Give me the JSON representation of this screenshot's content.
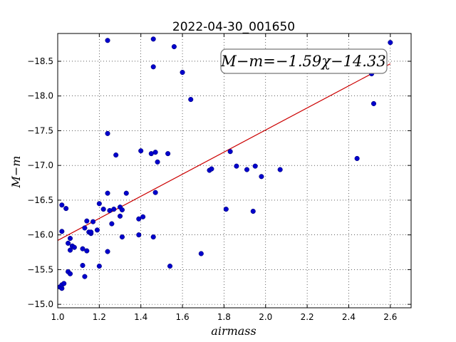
{
  "chart_data": {
    "type": "scatter",
    "title": "2022-04-30_001650",
    "xlabel": "airmass",
    "ylabel": "M−m",
    "xlim": [
      1.0,
      2.7
    ],
    "ylim": [
      -18.9,
      -14.95
    ],
    "y_inverted": true,
    "grid": true,
    "x_ticks": [
      1.0,
      1.2,
      1.4,
      1.6,
      1.8,
      2.0,
      2.2,
      2.4,
      2.6
    ],
    "y_ticks": [
      -15.0,
      -15.5,
      -16.0,
      -16.5,
      -17.0,
      -17.5,
      -18.0,
      -18.5
    ],
    "annotation": "M−m=−1.59χ−14.33",
    "annotation_placement": "top-right",
    "colors": {
      "points": "#0000cc",
      "fit": "#cc0000"
    },
    "fit": {
      "slope": -1.59,
      "intercept": -14.33,
      "x_range": [
        1.0,
        2.6
      ]
    },
    "points": [
      {
        "x": 1.01,
        "y": -15.25
      },
      {
        "x": 1.02,
        "y": -15.23
      },
      {
        "x": 1.02,
        "y": -15.28
      },
      {
        "x": 1.03,
        "y": -15.3
      },
      {
        "x": 1.05,
        "y": -15.47
      },
      {
        "x": 1.06,
        "y": -15.44
      },
      {
        "x": 1.02,
        "y": -16.05
      },
      {
        "x": 1.02,
        "y": -16.43
      },
      {
        "x": 1.04,
        "y": -16.38
      },
      {
        "x": 1.05,
        "y": -15.88
      },
      {
        "x": 1.06,
        "y": -15.78
      },
      {
        "x": 1.06,
        "y": -15.95
      },
      {
        "x": 1.07,
        "y": -15.84
      },
      {
        "x": 1.08,
        "y": -15.82
      },
      {
        "x": 1.12,
        "y": -15.8
      },
      {
        "x": 1.12,
        "y": -15.56
      },
      {
        "x": 1.13,
        "y": -15.4
      },
      {
        "x": 1.13,
        "y": -16.1
      },
      {
        "x": 1.14,
        "y": -15.77
      },
      {
        "x": 1.14,
        "y": -16.2
      },
      {
        "x": 1.15,
        "y": -16.04
      },
      {
        "x": 1.16,
        "y": -16.02
      },
      {
        "x": 1.16,
        "y": -16.04
      },
      {
        "x": 1.17,
        "y": -16.19
      },
      {
        "x": 1.19,
        "y": -16.07
      },
      {
        "x": 1.2,
        "y": -15.55
      },
      {
        "x": 1.2,
        "y": -16.45
      },
      {
        "x": 1.22,
        "y": -16.37
      },
      {
        "x": 1.24,
        "y": -15.76
      },
      {
        "x": 1.24,
        "y": -16.6
      },
      {
        "x": 1.25,
        "y": -16.35
      },
      {
        "x": 1.26,
        "y": -16.16
      },
      {
        "x": 1.27,
        "y": -16.37
      },
      {
        "x": 1.28,
        "y": -17.15
      },
      {
        "x": 1.3,
        "y": -16.27
      },
      {
        "x": 1.3,
        "y": -16.4
      },
      {
        "x": 1.31,
        "y": -16.36
      },
      {
        "x": 1.31,
        "y": -15.97
      },
      {
        "x": 1.33,
        "y": -16.6
      },
      {
        "x": 1.39,
        "y": -16.0
      },
      {
        "x": 1.39,
        "y": -16.23
      },
      {
        "x": 1.41,
        "y": -16.26
      },
      {
        "x": 1.4,
        "y": -17.21
      },
      {
        "x": 1.24,
        "y": -17.46
      },
      {
        "x": 1.24,
        "y": -18.8
      },
      {
        "x": 1.46,
        "y": -15.97
      },
      {
        "x": 1.47,
        "y": -16.61
      },
      {
        "x": 1.48,
        "y": -17.05
      },
      {
        "x": 1.47,
        "y": -17.19
      },
      {
        "x": 1.45,
        "y": -17.17
      },
      {
        "x": 1.46,
        "y": -18.42
      },
      {
        "x": 1.46,
        "y": -18.82
      },
      {
        "x": 1.53,
        "y": -17.17
      },
      {
        "x": 1.54,
        "y": -15.55
      },
      {
        "x": 1.56,
        "y": -18.71
      },
      {
        "x": 1.6,
        "y": -18.34
      },
      {
        "x": 1.64,
        "y": -17.95
      },
      {
        "x": 1.69,
        "y": -15.73
      },
      {
        "x": 1.73,
        "y": -16.93
      },
      {
        "x": 1.74,
        "y": -16.95
      },
      {
        "x": 1.81,
        "y": -16.37
      },
      {
        "x": 1.83,
        "y": -17.2
      },
      {
        "x": 1.86,
        "y": -16.99
      },
      {
        "x": 1.91,
        "y": -16.94
      },
      {
        "x": 1.94,
        "y": -16.34
      },
      {
        "x": 1.95,
        "y": -16.99
      },
      {
        "x": 1.98,
        "y": -16.84
      },
      {
        "x": 2.07,
        "y": -16.94
      },
      {
        "x": 2.44,
        "y": -17.1
      },
      {
        "x": 2.51,
        "y": -18.32
      },
      {
        "x": 2.52,
        "y": -17.89
      },
      {
        "x": 2.6,
        "y": -18.77
      }
    ]
  }
}
